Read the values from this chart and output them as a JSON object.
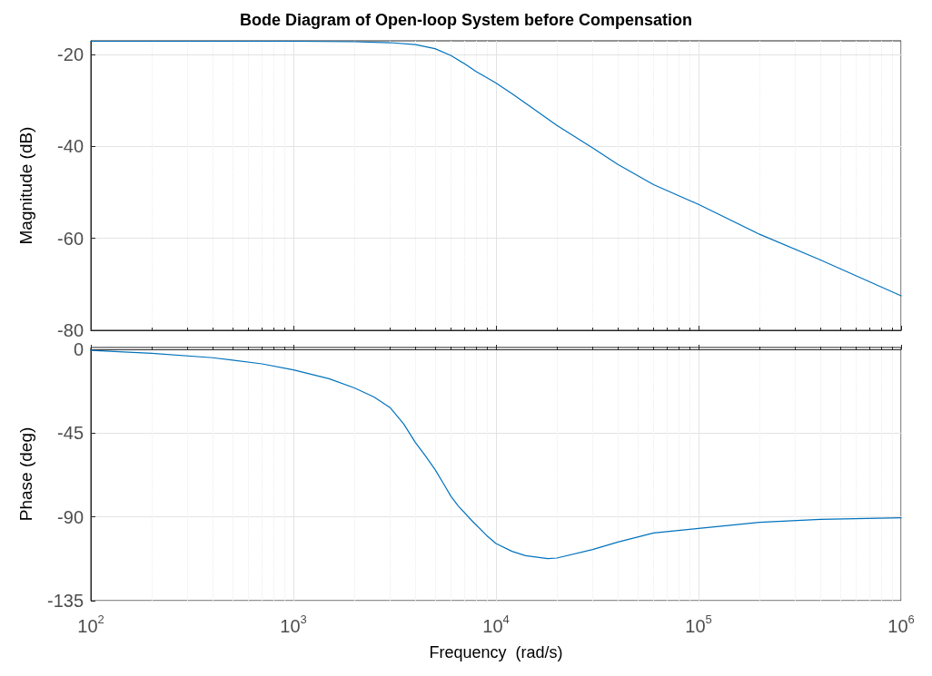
{
  "chart_data": [
    {
      "type": "line",
      "title": "Bode Diagram of Open-loop System before Compensation",
      "ylabel": "Magnitude (dB)",
      "log": "x",
      "grid": true,
      "tick_labels": "y",
      "line_style": "solid",
      "marker": "none",
      "xlim": [
        100,
        1000000
      ],
      "xticks": [
        {
          "value": 100,
          "label": null
        },
        {
          "value": 1000,
          "label": null
        },
        {
          "value": 10000,
          "label": null
        },
        {
          "value": 100000,
          "label": null
        },
        {
          "value": 1000000,
          "label": null
        }
      ],
      "ylim": [
        -80,
        -17
      ],
      "yticks": [
        -80,
        -60,
        -40,
        -20
      ],
      "series": [
        {
          "color": "#0072bd",
          "x": [
            100,
            1000,
            2000,
            3000,
            4000,
            5000,
            6000,
            7000,
            8000,
            9000,
            10000,
            12000,
            15000,
            20000,
            30000,
            40000,
            60000,
            100000,
            200000,
            400000,
            1000000
          ],
          "values": [
            -17.1,
            -17.1,
            -17.2,
            -17.4,
            -17.8,
            -18.7,
            -20.2,
            -22,
            -23.7,
            -25,
            -26.2,
            -28.5,
            -31.5,
            -35.4,
            -40.3,
            -43.9,
            -48.3,
            -52.6,
            -59.1,
            -64.7,
            -72.5
          ]
        }
      ]
    },
    {
      "type": "line",
      "xlabel": "Frequency  (rad/s)",
      "ylabel": "Phase (deg)",
      "log": "x",
      "grid": true,
      "line_style": "solid",
      "marker": "none",
      "xlim": [
        100,
        1000000
      ],
      "xticks": [
        {
          "value": 100,
          "label": "10$^{2}$"
        },
        {
          "value": 1000,
          "label": "10$^{3}$"
        },
        {
          "value": 10000,
          "label": "10$^{4}$"
        },
        {
          "value": 100000,
          "label": "10$^{5}$"
        },
        {
          "value": 1000000,
          "label": "10$^{6}$"
        }
      ],
      "ylim": [
        -135,
        1
      ],
      "yticks": [
        -135,
        -90,
        -45,
        0
      ],
      "series": [
        {
          "color": "#0072bd",
          "x": [
            100,
            200,
            400,
            700,
            1000,
            1500,
            2000,
            2500,
            3000,
            3500,
            4000,
            4500,
            5000,
            5500,
            6000,
            6500,
            7600,
            9000,
            10000,
            12000,
            14000,
            18000,
            20000,
            30000,
            40000,
            60000,
            100000,
            200000,
            400000,
            1000000
          ],
          "values": [
            -0.5,
            -2.1,
            -4.5,
            -7.8,
            -11,
            -15.8,
            -20.7,
            -25.6,
            -31.3,
            -40,
            -50,
            -57.5,
            -64.5,
            -72,
            -79,
            -84,
            -92,
            -100,
            -104.3,
            -108.5,
            -110.8,
            -112.4,
            -112.1,
            -107.5,
            -103.5,
            -98.6,
            -96.2,
            -92.9,
            -91.3,
            -90.5
          ]
        }
      ]
    }
  ]
}
